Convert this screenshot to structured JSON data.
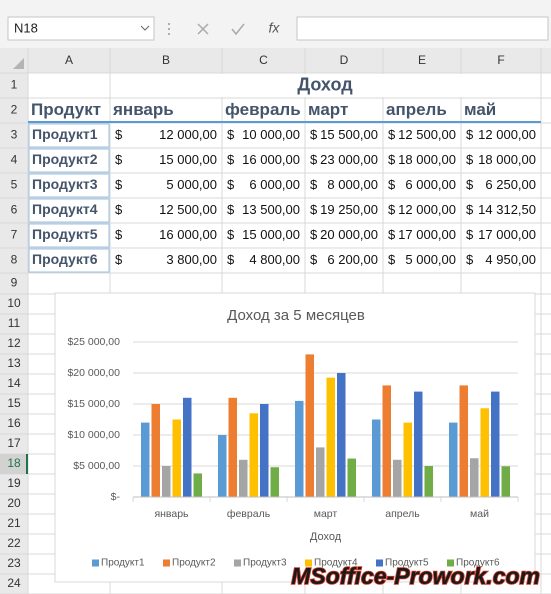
{
  "toolbar": {
    "name_box": "N18",
    "function_label": "fx"
  },
  "columns": [
    "A",
    "B",
    "C",
    "D",
    "E",
    "F"
  ],
  "row_numbers": [
    1,
    2,
    3,
    4,
    5,
    6,
    7,
    8,
    9,
    10,
    11,
    12,
    13,
    14,
    15,
    16,
    17,
    18,
    19,
    20,
    21,
    22,
    23,
    24
  ],
  "table": {
    "title": "Доход",
    "header": [
      "Продукт",
      "январь",
      "февраль",
      "март",
      "апрель",
      "май"
    ],
    "currency": "$",
    "rows": [
      [
        "Продукт1",
        "12 000,00",
        "10 000,00",
        "15 500,00",
        "12 500,00",
        "12 000,00"
      ],
      [
        "Продукт2",
        "15 000,00",
        "16 000,00",
        "23 000,00",
        "18 000,00",
        "18 000,00"
      ],
      [
        "Продукт3",
        "5 000,00",
        "6 000,00",
        "8 000,00",
        "6 000,00",
        "6 250,00"
      ],
      [
        "Продукт4",
        "12 500,00",
        "13 500,00",
        "19 250,00",
        "12 000,00",
        "14 312,50"
      ],
      [
        "Продукт5",
        "16 000,00",
        "15 000,00",
        "20 000,00",
        "17 000,00",
        "17 000,00"
      ],
      [
        "Продукт6",
        "3 800,00",
        "4 800,00",
        "6 200,00",
        "5 000,00",
        "4 950,00"
      ]
    ]
  },
  "chart_data": {
    "type": "bar",
    "title": "Доход за 5 месяцев",
    "x_label": "Доход",
    "categories": [
      "январь",
      "февраль",
      "март",
      "апрель",
      "май"
    ],
    "series": [
      {
        "name": "Продукт1",
        "color": "#5b9bd5",
        "values": [
          12000,
          10000,
          15500,
          12500,
          12000
        ]
      },
      {
        "name": "Продукт2",
        "color": "#ed7d31",
        "values": [
          15000,
          16000,
          23000,
          18000,
          18000
        ]
      },
      {
        "name": "Продукт3",
        "color": "#a5a5a5",
        "values": [
          5000,
          6000,
          8000,
          6000,
          6250
        ]
      },
      {
        "name": "Продукт4",
        "color": "#ffc000",
        "values": [
          12500,
          13500,
          19250,
          12000,
          14312.5
        ]
      },
      {
        "name": "Продукт5",
        "color": "#4472c4",
        "values": [
          16000,
          15000,
          20000,
          17000,
          17000
        ]
      },
      {
        "name": "Продукт6",
        "color": "#70ad47",
        "values": [
          3800,
          4800,
          6200,
          5000,
          4950
        ]
      }
    ],
    "ylim": [
      0,
      25000
    ],
    "yticks": [
      {
        "value": 0,
        "label": "$-"
      },
      {
        "value": 5000,
        "label": "$5 000,00"
      },
      {
        "value": 10000,
        "label": "$10 000,00"
      },
      {
        "value": 15000,
        "label": "$15 000,00"
      },
      {
        "value": 20000,
        "label": "$20 000,00"
      },
      {
        "value": 25000,
        "label": "$25 000,00"
      }
    ],
    "grid": true,
    "legend": "bottom"
  },
  "watermark": "MSoffice-Prowork.com"
}
